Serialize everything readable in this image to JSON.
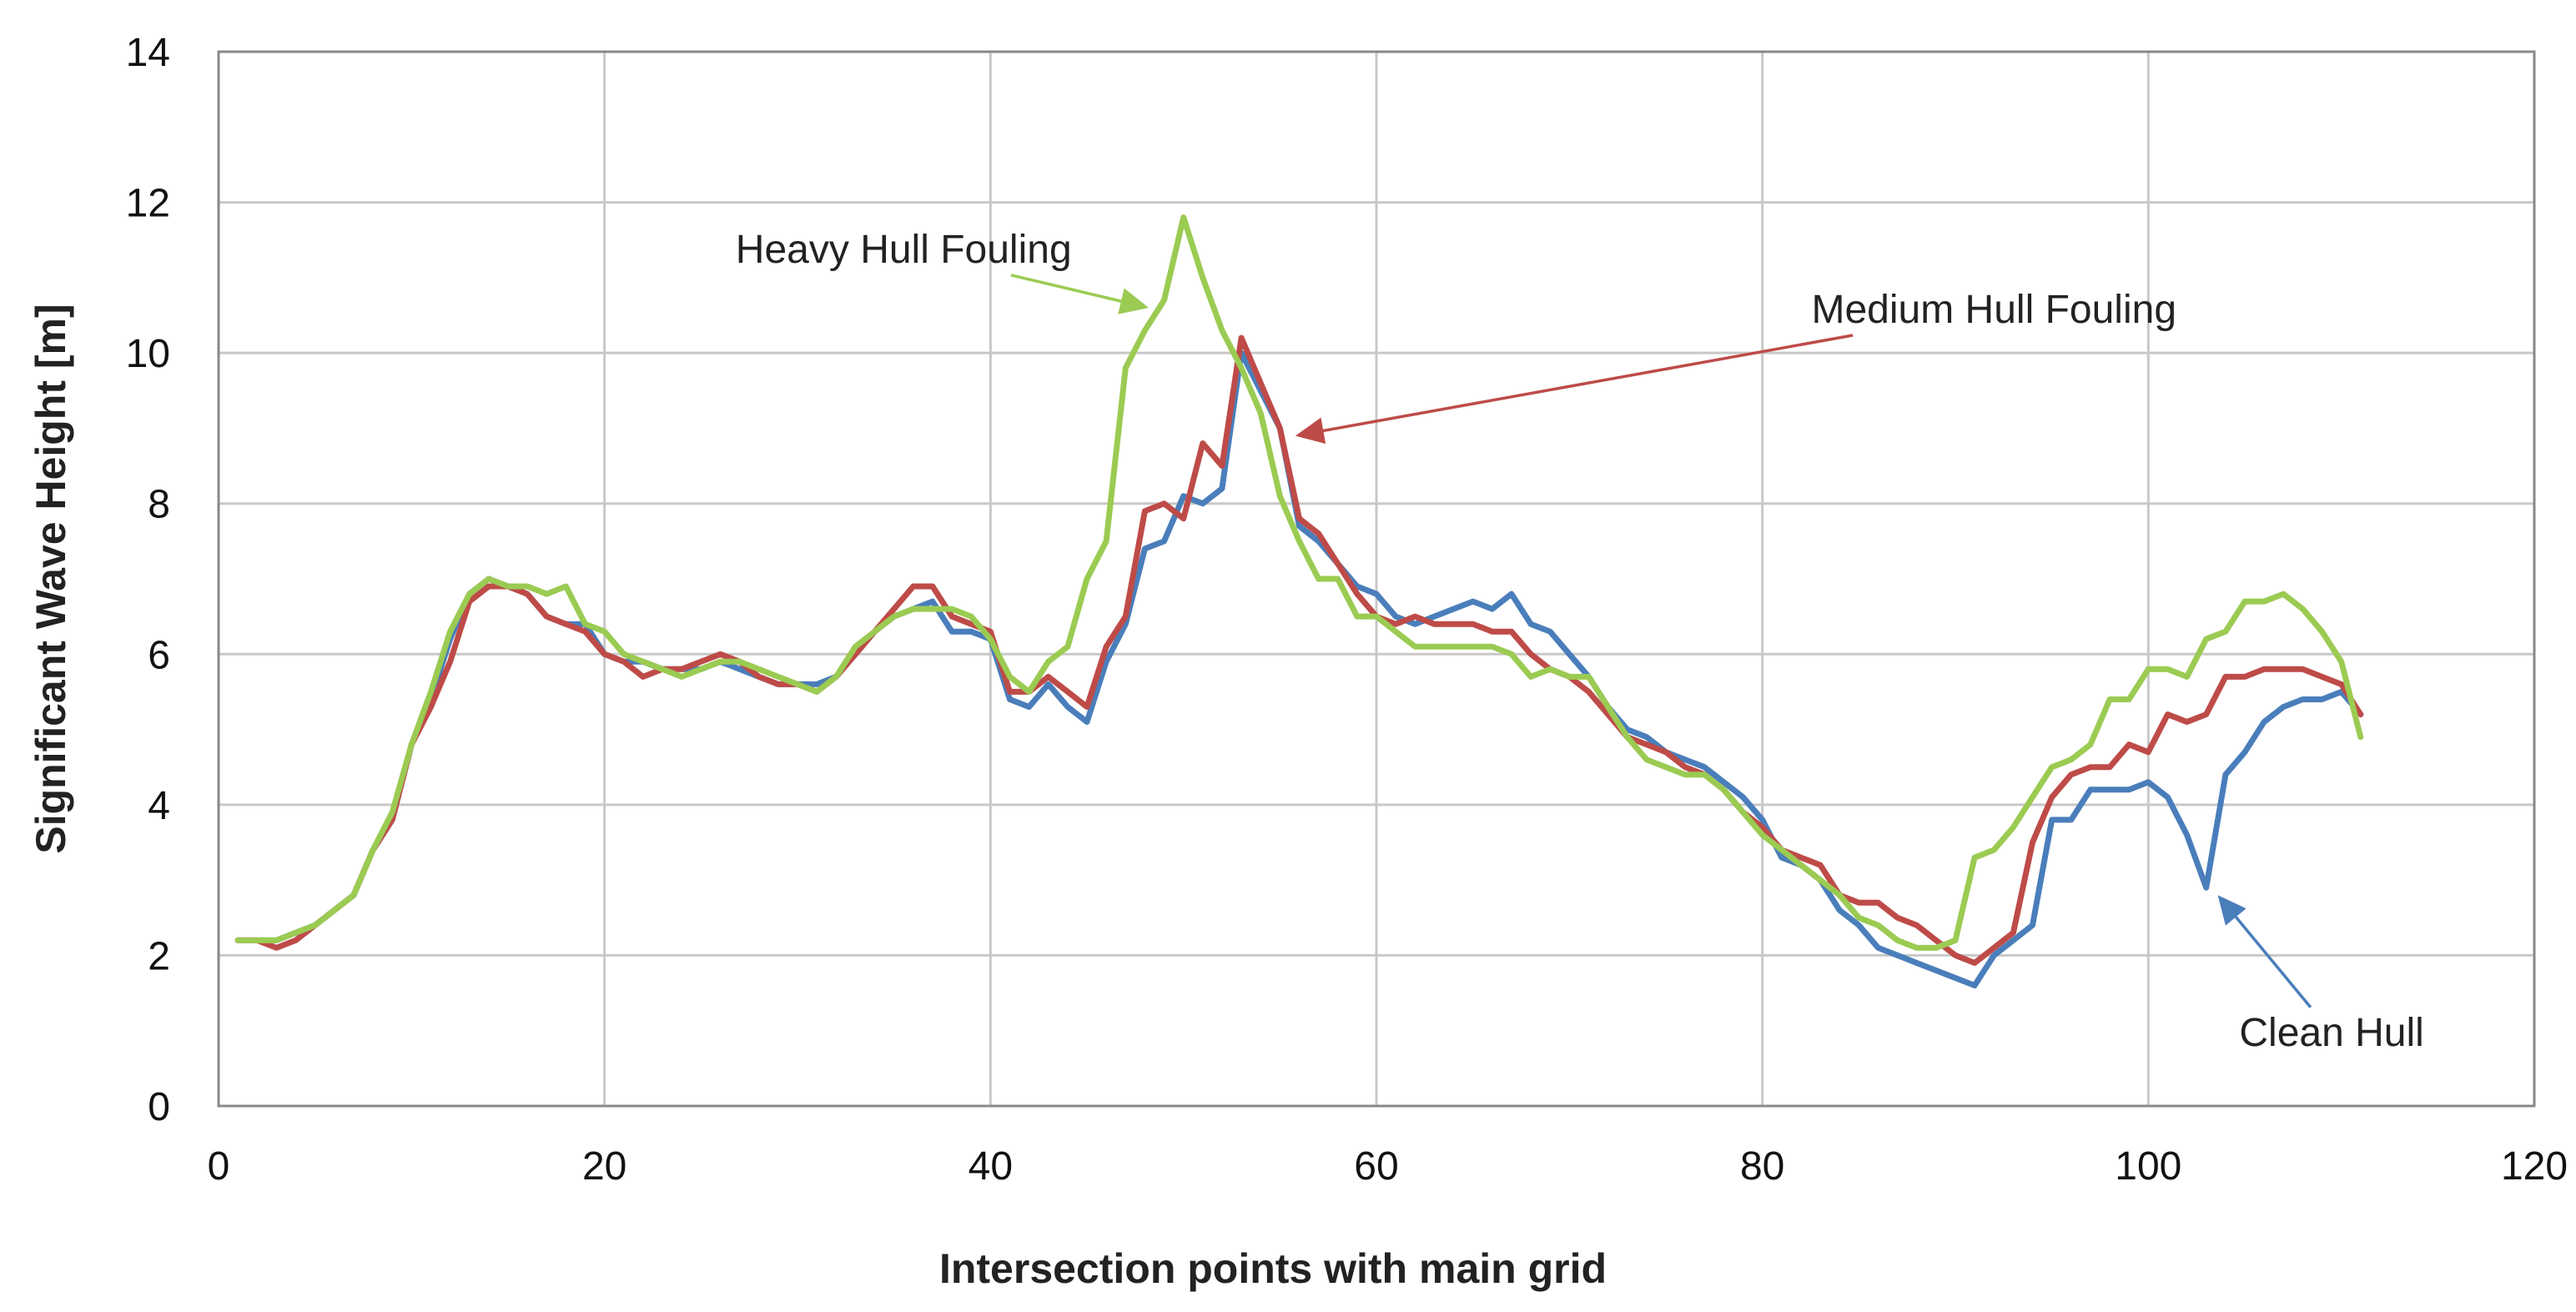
{
  "chart_data": {
    "type": "line",
    "title": "",
    "xlabel": "Intersection points with main grid",
    "ylabel": "Significant Wave Height [m]",
    "xlim": [
      0,
      120
    ],
    "ylim": [
      0,
      14
    ],
    "xticks": [
      0,
      20,
      40,
      60,
      80,
      100,
      120
    ],
    "yticks": [
      0,
      2,
      4,
      6,
      8,
      10,
      12,
      14
    ],
    "grid": true,
    "legend": "none (inline annotations with arrows)",
    "x": [
      1,
      2,
      3,
      4,
      5,
      6,
      7,
      8,
      9,
      10,
      11,
      12,
      13,
      14,
      15,
      16,
      17,
      18,
      19,
      20,
      21,
      22,
      23,
      24,
      25,
      26,
      27,
      28,
      29,
      30,
      31,
      32,
      33,
      34,
      35,
      36,
      37,
      38,
      39,
      40,
      41,
      42,
      43,
      44,
      45,
      46,
      47,
      48,
      49,
      50,
      51,
      52,
      53,
      54,
      55,
      56,
      57,
      58,
      59,
      60,
      61,
      62,
      63,
      64,
      65,
      66,
      67,
      68,
      69,
      70,
      71,
      72,
      73,
      74,
      75,
      76,
      77,
      78,
      79,
      80,
      81,
      82,
      83,
      84,
      85,
      86,
      87,
      88,
      89,
      90,
      91,
      92,
      93,
      94,
      95,
      96,
      97,
      98,
      99,
      100,
      101,
      102,
      103,
      104,
      105,
      106,
      107,
      108,
      109,
      110,
      111
    ],
    "series": [
      {
        "name": "Clean Hull",
        "color": "#4a7ebb",
        "values": [
          2.2,
          2.2,
          2.2,
          2.3,
          2.4,
          2.6,
          2.8,
          3.4,
          3.8,
          4.8,
          5.4,
          6.2,
          6.8,
          7.0,
          6.9,
          6.8,
          6.5,
          6.4,
          6.4,
          6.0,
          5.9,
          5.9,
          5.8,
          5.8,
          5.8,
          5.9,
          5.8,
          5.7,
          5.6,
          5.6,
          5.6,
          5.7,
          6.0,
          6.3,
          6.5,
          6.6,
          6.7,
          6.3,
          6.3,
          6.2,
          5.4,
          5.3,
          5.6,
          5.3,
          5.1,
          5.9,
          6.4,
          7.4,
          7.5,
          8.1,
          8.0,
          8.2,
          10.0,
          9.5,
          9.0,
          7.7,
          7.5,
          7.2,
          6.9,
          6.8,
          6.5,
          6.4,
          6.5,
          6.6,
          6.7,
          6.6,
          6.8,
          6.4,
          6.3,
          6.0,
          5.7,
          5.3,
          5.0,
          4.9,
          4.7,
          4.6,
          4.5,
          4.3,
          4.1,
          3.8,
          3.3,
          3.2,
          3.0,
          2.6,
          2.4,
          2.1,
          2.0,
          1.9,
          1.8,
          1.7,
          1.6,
          2.0,
          2.2,
          2.4,
          3.8,
          3.8,
          4.2,
          4.2,
          4.2,
          4.3,
          4.1,
          3.6,
          2.9,
          4.4,
          4.7,
          5.1,
          5.3,
          5.4,
          5.4,
          5.5,
          5.2
        ]
      },
      {
        "name": "Medium Hull Fouling",
        "color": "#be4b48",
        "values": [
          2.2,
          2.2,
          2.1,
          2.2,
          2.4,
          2.6,
          2.8,
          3.4,
          3.8,
          4.8,
          5.3,
          5.9,
          6.7,
          6.9,
          6.9,
          6.8,
          6.5,
          6.4,
          6.3,
          6.0,
          5.9,
          5.7,
          5.8,
          5.8,
          5.9,
          6.0,
          5.9,
          5.7,
          5.6,
          5.6,
          5.5,
          5.7,
          6.0,
          6.3,
          6.6,
          6.9,
          6.9,
          6.5,
          6.4,
          6.3,
          5.5,
          5.5,
          5.7,
          5.5,
          5.3,
          6.1,
          6.5,
          7.9,
          8.0,
          7.8,
          8.8,
          8.5,
          10.2,
          9.6,
          9.0,
          7.8,
          7.6,
          7.2,
          6.8,
          6.5,
          6.4,
          6.5,
          6.4,
          6.4,
          6.4,
          6.3,
          6.3,
          6.0,
          5.8,
          5.7,
          5.5,
          5.2,
          4.9,
          4.8,
          4.7,
          4.5,
          4.4,
          4.2,
          3.9,
          3.7,
          3.4,
          3.3,
          3.2,
          2.8,
          2.7,
          2.7,
          2.5,
          2.4,
          2.2,
          2.0,
          1.9,
          2.1,
          2.3,
          3.5,
          4.1,
          4.4,
          4.5,
          4.5,
          4.8,
          4.7,
          5.2,
          5.1,
          5.2,
          5.7,
          5.7,
          5.8,
          5.8,
          5.8,
          5.7,
          5.6,
          5.2
        ]
      },
      {
        "name": "Heavy Hull Fouling",
        "color": "#9bcb52",
        "values": [
          2.2,
          2.2,
          2.2,
          2.3,
          2.4,
          2.6,
          2.8,
          3.4,
          3.9,
          4.8,
          5.5,
          6.3,
          6.8,
          7.0,
          6.9,
          6.9,
          6.8,
          6.9,
          6.4,
          6.3,
          6.0,
          5.9,
          5.8,
          5.7,
          5.8,
          5.9,
          5.9,
          5.8,
          5.7,
          5.6,
          5.5,
          5.7,
          6.1,
          6.3,
          6.5,
          6.6,
          6.6,
          6.6,
          6.5,
          6.2,
          5.7,
          5.5,
          5.9,
          6.1,
          7.0,
          7.5,
          9.8,
          10.3,
          10.7,
          11.8,
          11.0,
          10.3,
          9.8,
          9.2,
          8.1,
          7.5,
          7.0,
          7.0,
          6.5,
          6.5,
          6.3,
          6.1,
          6.1,
          6.1,
          6.1,
          6.1,
          6.0,
          5.7,
          5.8,
          5.7,
          5.7,
          5.3,
          4.9,
          4.6,
          4.5,
          4.4,
          4.4,
          4.2,
          3.9,
          3.6,
          3.4,
          3.2,
          3.0,
          2.8,
          2.5,
          2.4,
          2.2,
          2.1,
          2.1,
          2.2,
          3.3,
          3.4,
          3.7,
          4.1,
          4.5,
          4.6,
          4.8,
          5.4,
          5.4,
          5.8,
          5.8,
          5.7,
          6.2,
          6.3,
          6.7,
          6.7,
          6.8,
          6.6,
          6.3,
          5.9,
          4.9
        ]
      }
    ],
    "annotations": [
      {
        "text": "Heavy Hull Fouling",
        "series": "Heavy Hull Fouling",
        "text_at": [
          35.5,
          11.2
        ],
        "arrow_to": [
          48.2,
          10.6
        ]
      },
      {
        "text": "Medium Hull Fouling",
        "series": "Medium Hull Fouling",
        "text_at": [
          92,
          10.4
        ],
        "arrow_to": [
          55.8,
          8.9
        ]
      },
      {
        "text": "Clean Hull",
        "series": "Clean Hull",
        "text_at": [
          109.5,
          0.8
        ],
        "arrow_to": [
          103.6,
          2.8
        ]
      }
    ]
  }
}
